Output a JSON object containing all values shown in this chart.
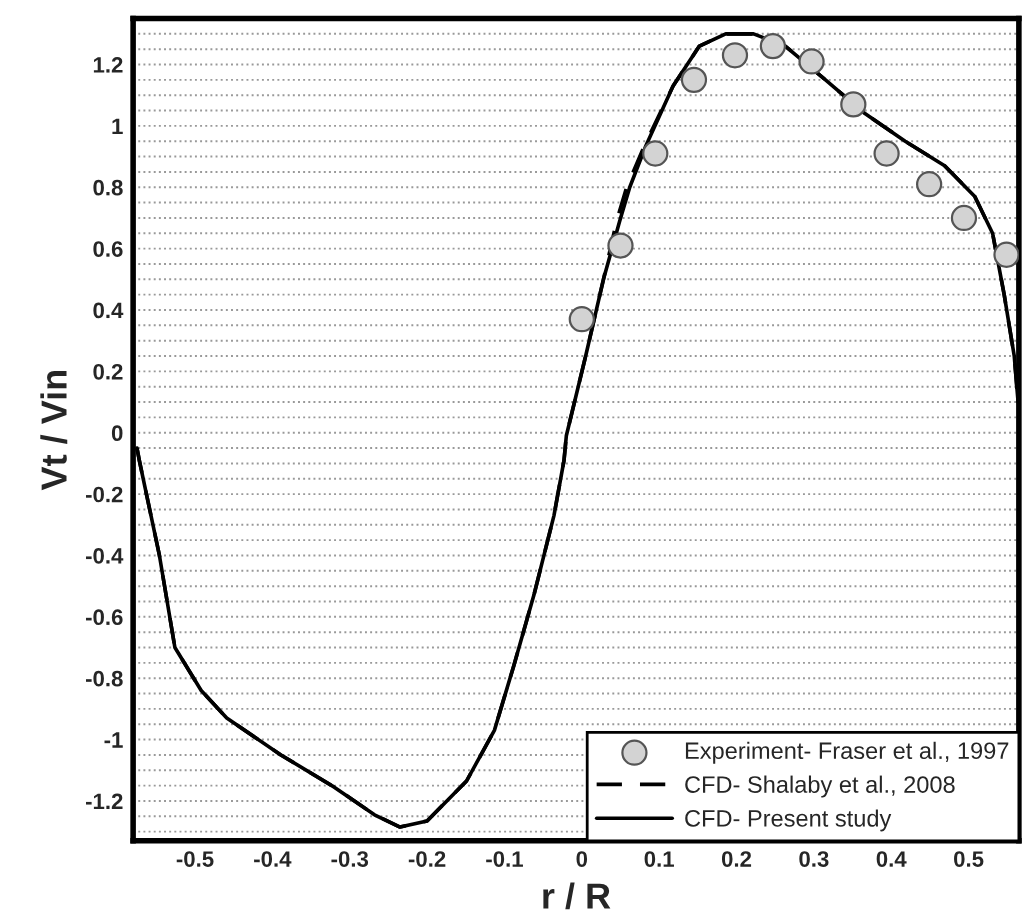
{
  "chart_data": {
    "type": "line",
    "xlabel": "r / R",
    "ylabel": "Vt / Vin",
    "xlim": [
      -0.58,
      0.565
    ],
    "ylim": [
      -1.33,
      1.35
    ],
    "xticks": [
      -0.5,
      -0.4,
      -0.3,
      -0.2,
      -0.1,
      0,
      0.1,
      0.2,
      0.3,
      0.4,
      0.5
    ],
    "yticks": [
      -1.2,
      -1,
      -0.8,
      -0.6,
      -0.4,
      -0.2,
      0,
      0.2,
      0.4,
      0.6,
      0.8,
      1,
      1.2
    ],
    "grid": "y",
    "legend": "bottom right",
    "series": [
      {
        "name": "Experiment- Fraser et al., 1997",
        "type": "scatter",
        "color": "#d3d3d3",
        "marker": "circle",
        "x": [
          0,
          0.05,
          0.095,
          0.145,
          0.198,
          0.247,
          0.297,
          0.351,
          0.394,
          0.449,
          0.494,
          0.549
        ],
        "values": [
          0.37,
          0.61,
          0.91,
          1.15,
          1.23,
          1.26,
          1.21,
          1.07,
          0.91,
          0.81,
          0.7,
          0.58
        ]
      },
      {
        "name": "CFD- Shalaby et al., 2008",
        "color": "#000000",
        "line_style": "dashed",
        "x": [
          -0.575,
          -0.572,
          -0.546,
          -0.526,
          -0.492,
          -0.459,
          -0.389,
          -0.32,
          -0.268,
          -0.235,
          -0.2,
          -0.149,
          -0.113,
          -0.088,
          -0.062,
          -0.036,
          -0.023,
          -0.02,
          0.005,
          0.028,
          0.045,
          0.058,
          0.08,
          0.118,
          0.152,
          0.186,
          0.222,
          0.263,
          0.315,
          0.366,
          0.418,
          0.469,
          0.508,
          0.531,
          0.546,
          0.559,
          0.564
        ],
        "values": [
          -0.05,
          -0.09,
          -0.4,
          -0.7,
          -0.84,
          -0.93,
          -1.05,
          -1.155,
          -1.245,
          -1.285,
          -1.265,
          -1.135,
          -0.97,
          -0.76,
          -0.53,
          -0.27,
          -0.09,
          -0.01,
          0.25,
          0.5,
          0.69,
          0.8,
          0.93,
          1.13,
          1.26,
          1.3,
          1.3,
          1.26,
          1.15,
          1.04,
          0.95,
          0.87,
          0.77,
          0.65,
          0.45,
          0.25,
          0.1
        ]
      },
      {
        "name": "CFD- Present study",
        "color": "#000000",
        "line_style": "solid",
        "x": [
          -0.575,
          -0.572,
          -0.546,
          -0.526,
          -0.492,
          -0.459,
          -0.389,
          -0.32,
          -0.268,
          -0.235,
          -0.2,
          -0.149,
          -0.113,
          -0.088,
          -0.062,
          -0.036,
          -0.023,
          -0.02,
          0.005,
          0.028,
          0.049,
          0.062,
          0.082,
          0.118,
          0.152,
          0.186,
          0.222,
          0.263,
          0.315,
          0.366,
          0.418,
          0.469,
          0.508,
          0.531,
          0.546,
          0.559,
          0.564
        ],
        "values": [
          -0.05,
          -0.09,
          -0.4,
          -0.7,
          -0.84,
          -0.93,
          -1.05,
          -1.155,
          -1.245,
          -1.285,
          -1.265,
          -1.135,
          -0.97,
          -0.76,
          -0.53,
          -0.27,
          -0.09,
          -0.01,
          0.25,
          0.5,
          0.69,
          0.8,
          0.93,
          1.13,
          1.26,
          1.3,
          1.3,
          1.26,
          1.15,
          1.04,
          0.95,
          0.87,
          0.77,
          0.65,
          0.45,
          0.25,
          0.1
        ]
      }
    ]
  }
}
